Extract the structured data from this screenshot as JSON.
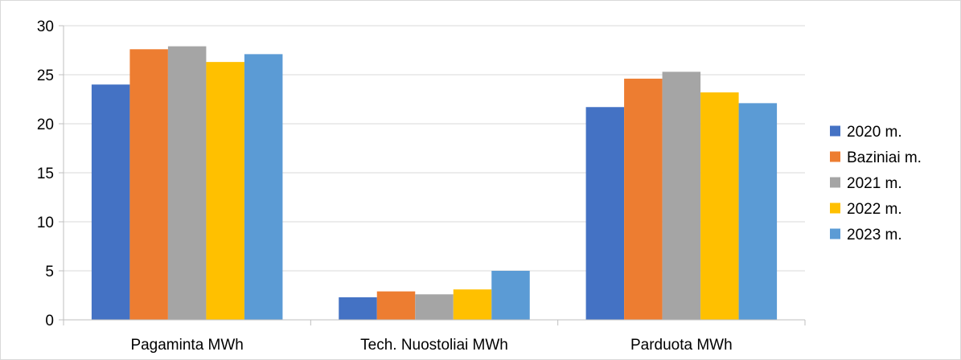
{
  "chart_data": {
    "type": "bar",
    "title": "",
    "xlabel": "",
    "ylabel": "",
    "categories": [
      "Pagaminta MWh",
      "Tech. Nuostoliai MWh",
      "Parduota MWh"
    ],
    "ylim": [
      0,
      30
    ],
    "yticks": [
      "0",
      "5",
      "10",
      "15",
      "20",
      "25",
      "30"
    ],
    "grid": true,
    "legend_position": "right",
    "series": [
      {
        "name": "2020 m.",
        "color": "#4472c4",
        "values": [
          24.0,
          2.3,
          21.7
        ]
      },
      {
        "name": "Baziniai m.",
        "color": "#ed7d31",
        "values": [
          27.6,
          2.9,
          24.6
        ]
      },
      {
        "name": "2021 m.",
        "color": "#a5a5a5",
        "values": [
          27.9,
          2.6,
          25.3
        ]
      },
      {
        "name": "2022 m.",
        "color": "#ffc000",
        "values": [
          26.3,
          3.1,
          23.2
        ]
      },
      {
        "name": "2023 m.",
        "color": "#5b9bd5",
        "values": [
          27.1,
          5.0,
          22.1
        ]
      }
    ]
  }
}
